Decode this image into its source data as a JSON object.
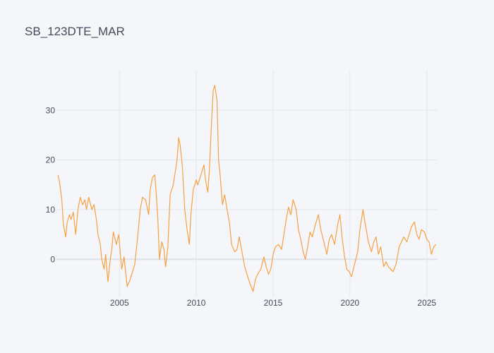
{
  "chart_data": {
    "type": "line",
    "title": "SB_123DTE_MAR",
    "xlabel": "",
    "ylabel": "",
    "x_ticks": [
      "2005",
      "2010",
      "2015",
      "2020",
      "2025"
    ],
    "y_ticks": [
      0,
      10,
      20,
      30
    ],
    "xlim": [
      2000.9,
      2025.7
    ],
    "ylim": [
      -7.5,
      38
    ],
    "grid": true,
    "legend": "none",
    "colors": {
      "background": "#f5f6fa",
      "series": "#f7a042",
      "grid": "#e3e6ee",
      "text": "#444b5a"
    },
    "series": [
      {
        "x": [
          2001.0,
          2001.1,
          2001.25,
          2001.35,
          2001.5,
          2001.6,
          2001.75,
          2001.85,
          2002.0,
          2002.15,
          2002.3,
          2002.45,
          2002.6,
          2002.75,
          2002.85,
          2003.0,
          2003.2,
          2003.35,
          2003.5,
          2003.6,
          2003.75,
          2003.85,
          2004.0,
          2004.1,
          2004.25,
          2004.4,
          2004.5,
          2004.6,
          2004.8,
          2004.95,
          2005.15,
          2005.3,
          2005.5,
          2005.7,
          2005.85,
          2006.0,
          2006.2,
          2006.35,
          2006.5,
          2006.7,
          2006.9,
          2007.0,
          2007.15,
          2007.3,
          2007.4,
          2007.5,
          2007.6,
          2007.75,
          2007.9,
          2008.0,
          2008.15,
          2008.3,
          2008.5,
          2008.65,
          2008.75,
          2008.85,
          2008.95,
          2009.1,
          2009.25,
          2009.4,
          2009.55,
          2009.65,
          2009.8,
          2010.0,
          2010.1,
          2010.3,
          2010.5,
          2010.6,
          2010.75,
          2010.85,
          2011.0,
          2011.1,
          2011.2,
          2011.35,
          2011.45,
          2011.55,
          2011.7,
          2011.85,
          2012.0,
          2012.15,
          2012.3,
          2012.5,
          2012.65,
          2012.8,
          2013.0,
          2013.15,
          2013.35,
          2013.5,
          2013.7,
          2013.85,
          2014.0,
          2014.2,
          2014.4,
          2014.55,
          2014.7,
          2014.85,
          2015.0,
          2015.15,
          2015.35,
          2015.55,
          2015.7,
          2015.85,
          2016.0,
          2016.15,
          2016.3,
          2016.5,
          2016.65,
          2016.8,
          2016.95,
          2017.1,
          2017.25,
          2017.4,
          2017.55,
          2017.75,
          2017.95,
          2018.1,
          2018.3,
          2018.5,
          2018.65,
          2018.8,
          2019.0,
          2019.2,
          2019.35,
          2019.5,
          2019.65,
          2019.8,
          2019.95,
          2020.1,
          2020.3,
          2020.5,
          2020.65,
          2020.85,
          2021.0,
          2021.2,
          2021.4,
          2021.55,
          2021.7,
          2021.85,
          2022.0,
          2022.2,
          2022.35,
          2022.5,
          2022.65,
          2022.8,
          2023.0,
          2023.2,
          2023.35,
          2023.5,
          2023.7,
          2023.85,
          2024.0,
          2024.2,
          2024.35,
          2024.5,
          2024.65,
          2024.85,
          2025.0,
          2025.15,
          2025.3,
          2025.45,
          2025.6
        ],
        "y": [
          17.0,
          15.5,
          12.0,
          7.0,
          4.5,
          7.5,
          9.0,
          8.0,
          9.5,
          5.0,
          10.0,
          12.5,
          11.0,
          12.0,
          10.0,
          12.5,
          10.0,
          11.0,
          8.0,
          5.0,
          3.0,
          0.0,
          -2.0,
          1.0,
          -4.5,
          0.0,
          2.0,
          5.5,
          3.0,
          5.0,
          -2.0,
          0.5,
          -5.5,
          -4.0,
          -2.5,
          -1.0,
          5.0,
          10.0,
          12.5,
          12.0,
          9.0,
          14.0,
          16.5,
          17.0,
          13.0,
          8.0,
          0.0,
          3.5,
          2.0,
          -1.5,
          2.5,
          13.0,
          15.0,
          18.0,
          20.0,
          24.5,
          23.0,
          18.5,
          10.0,
          6.0,
          3.0,
          9.0,
          14.0,
          16.0,
          15.0,
          17.0,
          19.0,
          16.0,
          13.5,
          18.0,
          28.0,
          34.0,
          35.0,
          32.0,
          20.0,
          17.0,
          11.0,
          13.0,
          10.0,
          7.5,
          3.0,
          1.5,
          2.0,
          4.5,
          1.0,
          -1.5,
          -3.5,
          -5.0,
          -6.5,
          -4.0,
          -3.0,
          -2.0,
          0.5,
          -1.5,
          -3.0,
          -2.0,
          1.0,
          2.5,
          3.0,
          2.0,
          5.0,
          8.0,
          10.5,
          9.0,
          12.0,
          10.0,
          6.0,
          4.0,
          1.5,
          0.0,
          2.5,
          5.5,
          4.5,
          7.0,
          9.0,
          6.0,
          3.5,
          1.0,
          4.0,
          5.0,
          3.0,
          7.0,
          9.0,
          4.0,
          0.5,
          -2.0,
          -2.5,
          -3.5,
          -1.0,
          1.5,
          6.0,
          10.0,
          7.0,
          3.5,
          1.5,
          3.5,
          4.5,
          1.0,
          2.5,
          -1.5,
          -0.5,
          -1.5,
          -2.0,
          -2.5,
          -1.0,
          2.5,
          3.5,
          4.5,
          3.5,
          5.0,
          6.5,
          7.5,
          5.0,
          4.0,
          6.0,
          5.5,
          4.0,
          3.5,
          1.0,
          2.5,
          3.0
        ]
      }
    ]
  }
}
